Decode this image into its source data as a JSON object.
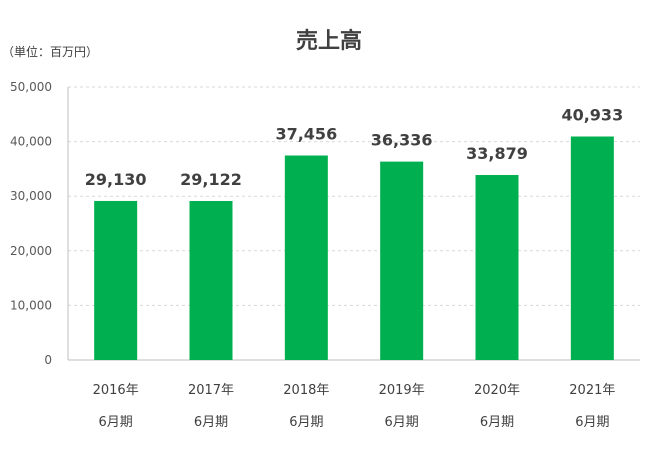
{
  "chart_data": {
    "type": "bar",
    "title": "売上高",
    "unit_label": "（単位：百万円）",
    "categories": [
      [
        "2016年",
        "6月期"
      ],
      [
        "2017年",
        "6月期"
      ],
      [
        "2018年",
        "6月期"
      ],
      [
        "2019年",
        "6月期"
      ],
      [
        "2020年",
        "6月期"
      ],
      [
        "2021年",
        "6月期"
      ]
    ],
    "values": [
      29130,
      29122,
      37456,
      36336,
      33879,
      40933
    ],
    "data_labels": [
      "29,130",
      "29,122",
      "37,456",
      "36,336",
      "33,879",
      "40,933"
    ],
    "yticks": [
      "0",
      "10,000",
      "20,000",
      "30,000",
      "40,000",
      "50,000"
    ],
    "ylim": [
      0,
      50000
    ],
    "ytick_values": [
      0,
      10000,
      20000,
      30000,
      40000,
      50000
    ],
    "bar_color": "#00b050",
    "grid": true,
    "legend": false
  }
}
